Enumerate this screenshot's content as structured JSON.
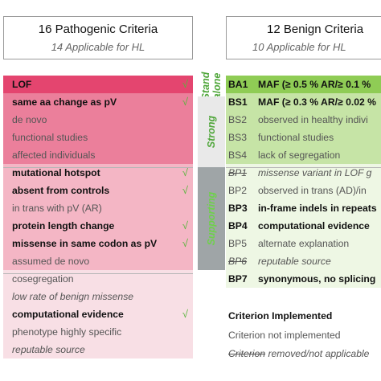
{
  "headers": {
    "pathogenic_title": "16 Pathogenic Criteria",
    "pathogenic_subtitle": "14 Applicable for HL",
    "benign_title": "12 Benign Criteria",
    "benign_subtitle": "10 Applicable for HL"
  },
  "levels": {
    "standalone_line1": "Stand",
    "standalone_line2": "alone",
    "strong": "Strong",
    "supporting": "Supporting"
  },
  "pathogenic_rows": [
    {
      "label": "LOF",
      "check": "√",
      "color": "#e4456f"
    },
    {
      "label": "same aa change as pV",
      "check": "√",
      "color": "#eb7f9b"
    },
    {
      "label": "de novo",
      "check": "",
      "color": "#eb7f9b"
    },
    {
      "label": "functional studies",
      "check": "",
      "color": "#eb7f9b"
    },
    {
      "label": "affected individuals",
      "check": "",
      "color": "#eb7f9b"
    },
    {
      "label": "mutational hotspot",
      "check": "√",
      "color": "#f4b6c5"
    },
    {
      "label": "absent from controls",
      "check": "√",
      "color": "#f4b6c5"
    },
    {
      "label": "in trans with pV (AR)",
      "check": "",
      "color": "#f4b6c5"
    },
    {
      "label": "protein length change",
      "check": "√",
      "color": "#f4b6c5"
    },
    {
      "label": "missense in same codon as pV",
      "check": "√",
      "color": "#f4b6c5"
    },
    {
      "label": "assumed de novo",
      "check": "",
      "color": "#f4b6c5"
    },
    {
      "label": "cosegregation",
      "check": "",
      "color": "#f8dfe5"
    },
    {
      "label": "low rate of benign missense",
      "check": "",
      "color": "#f8dfe5"
    },
    {
      "label": "computational evidence",
      "check": "√",
      "color": "#f8dfe5"
    },
    {
      "label": "phenotype highly specific",
      "check": "",
      "color": "#f8dfe5"
    },
    {
      "label": "reputable source",
      "check": "",
      "color": "#f8dfe5"
    }
  ],
  "benign_rows": [
    {
      "code": "BA1",
      "label": "MAF (≥ 0.5 % AR/≥ 0.1 %",
      "color": "#8fcc55"
    },
    {
      "code": "BS1",
      "label": "MAF (≥ 0.3 % AR/≥ 0.02 %",
      "color": "#c6e4a6"
    },
    {
      "code": "BS2",
      "label": "observed in healthy indivi",
      "color": "#c6e4a6"
    },
    {
      "code": "BS3",
      "label": "functional studies",
      "color": "#c6e4a6"
    },
    {
      "code": "BS4",
      "label": "lack of segregation",
      "color": "#c6e4a6"
    },
    {
      "code": "BP1",
      "label": "missense variant in LOF g",
      "color": "#eef7e4"
    },
    {
      "code": "BP2",
      "label": "observed in trans (AD)/in",
      "color": "#eef7e4"
    },
    {
      "code": "BP3",
      "label": "in-frame indels in repeats",
      "color": "#eef7e4"
    },
    {
      "code": "BP4",
      "label": "computational evidence",
      "color": "#eef7e4"
    },
    {
      "code": "BP5",
      "label": "alternate explanation",
      "color": "#eef7e4"
    },
    {
      "code": "BP6",
      "label": "reputable source",
      "color": "#eef7e4"
    },
    {
      "code": "BP7",
      "label": "synonymous, no splicing",
      "color": "#eef7e4"
    }
  ],
  "legend": {
    "implemented": "Criterion Implemented",
    "not_implemented": "Criterion not implemented",
    "removed_word": "Criterion",
    "removed_rest": " removed/not applicable"
  },
  "colors": {
    "check": "#59b53d",
    "level_label": "#4fa63a",
    "strong_band": "#e9e9e9",
    "supporting_band": "#9fa5a7"
  }
}
